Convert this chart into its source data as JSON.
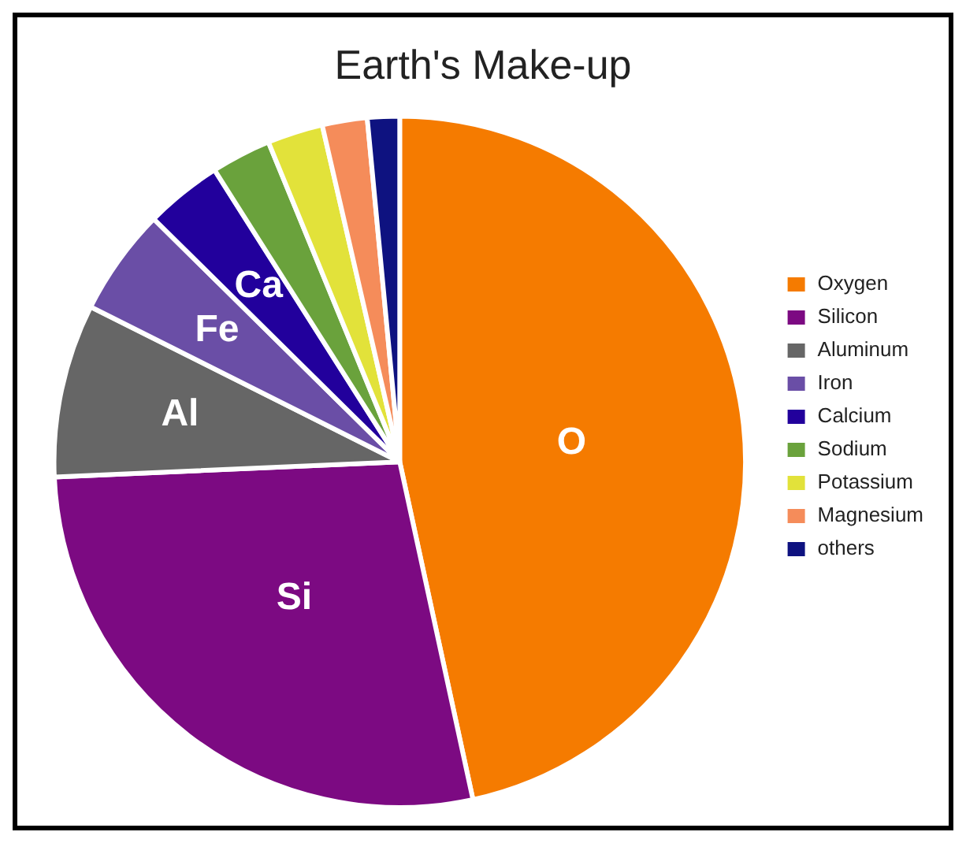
{
  "chart_data": {
    "type": "pie",
    "title": "Earth's Make-up",
    "categories": [
      "Oxygen",
      "Silicon",
      "Aluminum",
      "Iron",
      "Calcium",
      "Sodium",
      "Potassium",
      "Magnesium",
      "others"
    ],
    "values": [
      46.6,
      27.7,
      8.1,
      5.0,
      3.6,
      2.8,
      2.6,
      2.1,
      1.5
    ],
    "colors": [
      "#f57b00",
      "#7c0a82",
      "#666666",
      "#6a4ea6",
      "#22009c",
      "#6aa23c",
      "#e2e23a",
      "#f58c5a",
      "#0e1280"
    ],
    "value_labels": [
      "O",
      "Si",
      "Al",
      "Fe",
      "Ca",
      null,
      null,
      null,
      null
    ],
    "legend": "right"
  }
}
